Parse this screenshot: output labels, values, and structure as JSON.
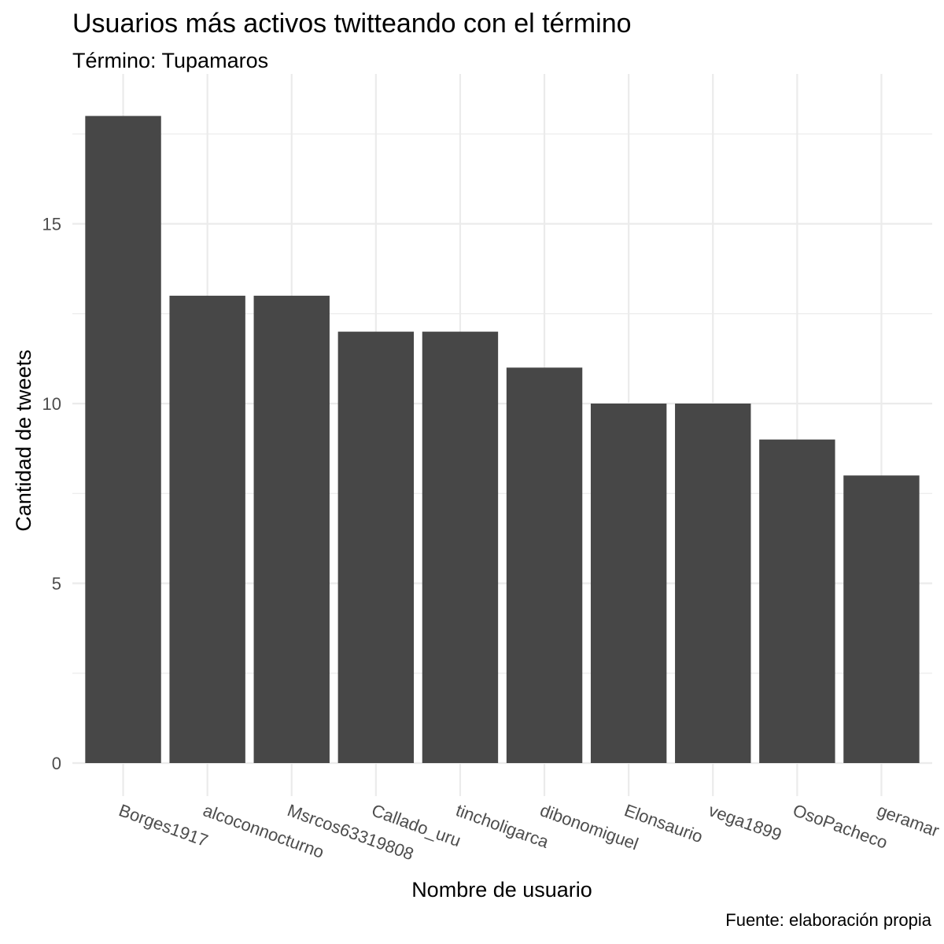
{
  "chart_data": {
    "type": "bar",
    "title": "Usuarios más activos twitteando con el término",
    "subtitle": "Término: Tupamaros",
    "caption": "Fuente: elaboración propia",
    "xlabel": "Nombre de usuario",
    "ylabel": "Cantidad de tweets",
    "categories": [
      "Borges1917",
      "alcoconnocturno",
      "Msrcos63319808",
      "Callado_uru",
      "tincholigarca",
      "dibonomiguel",
      "Elonsaurio",
      "vega1899",
      "OsoPacheco",
      "geramar"
    ],
    "values": [
      18,
      13,
      13,
      12,
      12,
      11,
      10,
      10,
      9,
      8
    ],
    "ylim": [
      0,
      18
    ],
    "y_ticks": [
      0,
      5,
      10,
      15
    ],
    "grid": true,
    "legend": "none",
    "bar_color": "#474747",
    "grid_color": "#ebebeb",
    "axis_text_color": "#4d4d4d"
  }
}
